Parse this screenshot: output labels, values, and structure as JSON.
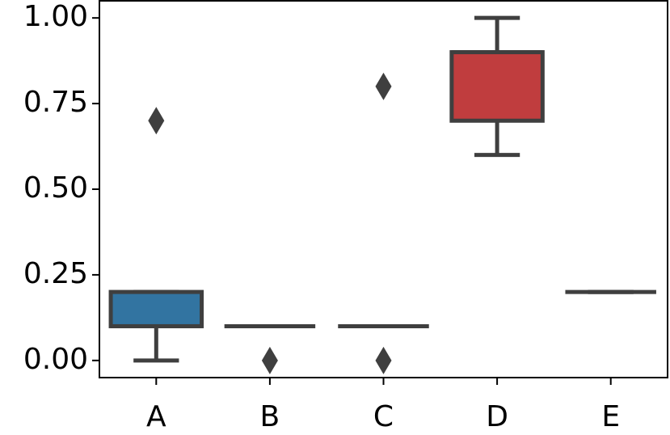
{
  "chart_data": {
    "type": "box",
    "categories": [
      "A",
      "B",
      "C",
      "D",
      "E"
    ],
    "colors": [
      "#3274a1",
      "#e1812c",
      "#3a923a",
      "#c03d3e",
      "#9372b2"
    ],
    "whisker_low": [
      0,
      0.1,
      0.1,
      0.6,
      0.2
    ],
    "q1": [
      0.1,
      0.1,
      0.1,
      0.7,
      0.2
    ],
    "median": [
      0.1,
      0.1,
      0.1,
      0.9,
      0.2
    ],
    "q3": [
      0.2,
      0.1,
      0.1,
      0.9,
      0.2
    ],
    "whisker_high": [
      0.2,
      0.1,
      0.1,
      1.0,
      0.2
    ],
    "outliers": [
      [
        0.7
      ],
      [
        0
      ],
      [
        0,
        0.8
      ],
      [],
      []
    ],
    "ylim": [
      -0.05,
      1.05
    ],
    "yticks": [
      {
        "value": 0,
        "label": "0.00"
      },
      {
        "value": 0.25,
        "label": "0.25"
      },
      {
        "value": 0.5,
        "label": "0.50"
      },
      {
        "value": 0.75,
        "label": "0.75"
      },
      {
        "value": 1,
        "label": "1.00"
      }
    ]
  }
}
